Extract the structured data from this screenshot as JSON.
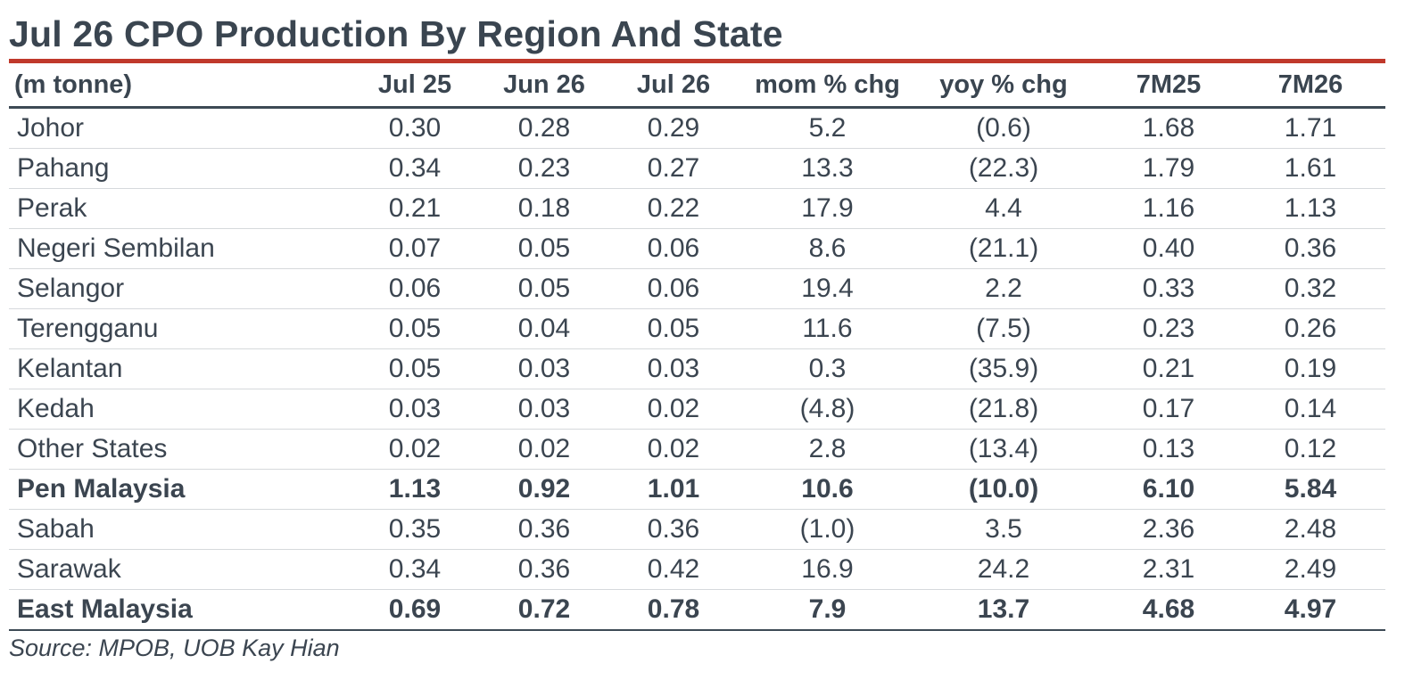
{
  "title": "Jul 26 CPO Production By Region And State",
  "table": {
    "columns": [
      "(m tonne)",
      "Jul 25",
      "Jun 26",
      "Jul 26",
      "mom % chg",
      "yoy % chg",
      "7M25",
      "7M26"
    ],
    "rows": [
      {
        "cells": [
          "Johor",
          "0.30",
          "0.28",
          "0.29",
          "5.2",
          "(0.6)",
          "1.68",
          "1.71"
        ],
        "bold": false
      },
      {
        "cells": [
          "Pahang",
          "0.34",
          "0.23",
          "0.27",
          "13.3",
          "(22.3)",
          "1.79",
          "1.61"
        ],
        "bold": false
      },
      {
        "cells": [
          "Perak",
          "0.21",
          "0.18",
          "0.22",
          "17.9",
          "4.4",
          "1.16",
          "1.13"
        ],
        "bold": false
      },
      {
        "cells": [
          "Negeri Sembilan",
          "0.07",
          "0.05",
          "0.06",
          "8.6",
          "(21.1)",
          "0.40",
          "0.36"
        ],
        "bold": false
      },
      {
        "cells": [
          "Selangor",
          "0.06",
          "0.05",
          "0.06",
          "19.4",
          "2.2",
          "0.33",
          "0.32"
        ],
        "bold": false
      },
      {
        "cells": [
          "Terengganu",
          "0.05",
          "0.04",
          "0.05",
          "11.6",
          "(7.5)",
          "0.23",
          "0.26"
        ],
        "bold": false
      },
      {
        "cells": [
          "Kelantan",
          "0.05",
          "0.03",
          "0.03",
          "0.3",
          "(35.9)",
          "0.21",
          "0.19"
        ],
        "bold": false
      },
      {
        "cells": [
          "Kedah",
          "0.03",
          "0.03",
          "0.02",
          "(4.8)",
          "(21.8)",
          "0.17",
          "0.14"
        ],
        "bold": false
      },
      {
        "cells": [
          "Other States",
          "0.02",
          "0.02",
          "0.02",
          "2.8",
          "(13.4)",
          "0.13",
          "0.12"
        ],
        "bold": false
      },
      {
        "cells": [
          "Pen Malaysia",
          "1.13",
          "0.92",
          "1.01",
          "10.6",
          "(10.0)",
          "6.10",
          "5.84"
        ],
        "bold": true
      },
      {
        "cells": [
          "Sabah",
          "0.35",
          "0.36",
          "0.36",
          "(1.0)",
          "3.5",
          "2.36",
          "2.48"
        ],
        "bold": false
      },
      {
        "cells": [
          "Sarawak",
          "0.34",
          "0.36",
          "0.42",
          "16.9",
          "24.2",
          "2.31",
          "2.49"
        ],
        "bold": false
      },
      {
        "cells": [
          "East Malaysia",
          "0.69",
          "0.72",
          "0.78",
          "7.9",
          "13.7",
          "4.68",
          "4.97"
        ],
        "bold": true
      }
    ]
  },
  "source": "Source: MPOB, UOB Kay Hian",
  "colors": {
    "accent_rule": "#c0392b",
    "text": "#3b4550"
  }
}
